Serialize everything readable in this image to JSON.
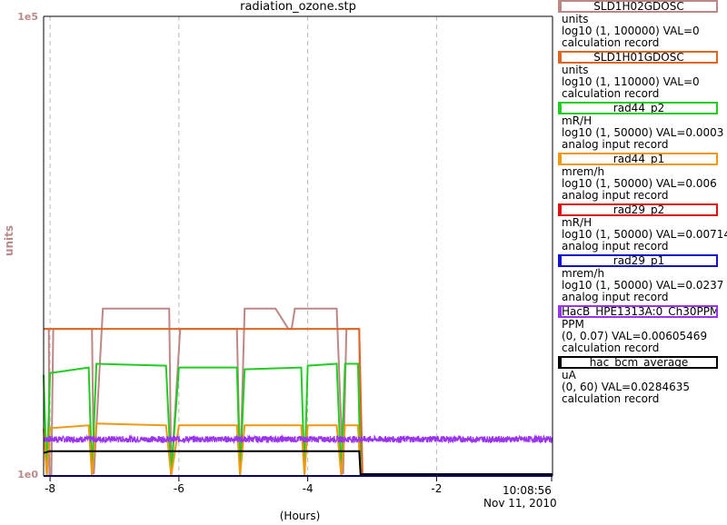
{
  "title": "radiation_ozone.stp",
  "chart_data": {
    "type": "line",
    "title": "radiation_ozone.stp",
    "ylabel": "units",
    "y_scale": "log",
    "yticks": [
      "1e5",
      "1e0"
    ],
    "xlabel": "(Hours)",
    "xlim": [
      -8.1,
      -0.2
    ],
    "xticks": [
      -8,
      -6,
      -4,
      -2
    ],
    "xtick_labels": [
      "-8",
      "-6",
      "-4",
      "-2"
    ],
    "end_time": "10:08:56",
    "end_date": "Nov 11, 2010",
    "grid": true,
    "legend_position": "right",
    "series": [
      {
        "name": "SLD1H02GDOSC",
        "color": "#bb8888",
        "units": "units",
        "range": "log10 (1, 100000) VAL=0",
        "record": "calculation record",
        "x": [
          -8.1,
          -8.02,
          -8.01,
          -7.98,
          -7.95,
          -7.35,
          -7.32,
          -7.18,
          -6.15,
          -6.12,
          -5.98,
          -5.7,
          -5.1,
          -5.05,
          -4.98,
          -4.5,
          -4.3,
          -4.25,
          -4.2,
          -3.95,
          -3.55,
          -3.45,
          -3.4,
          -3.2,
          -3.18,
          -3.15,
          -3.12,
          -0.2
        ],
        "y": [
          1.6,
          1.6,
          0.02,
          0.02,
          1.6,
          1.6,
          0.02,
          1.82,
          1.82,
          0.02,
          1.6,
          1.6,
          1.6,
          0.02,
          1.82,
          1.82,
          1.6,
          1.6,
          1.82,
          1.82,
          1.82,
          0.02,
          1.6,
          1.6,
          0.02,
          0.02,
          0.02,
          0.02
        ]
      },
      {
        "name": "SLD1H01GDOSC",
        "color": "#dd6622",
        "units": "units",
        "range": "log10 (1, 110000) VAL=0",
        "record": "calculation record",
        "x": [
          -8.1,
          -3.2,
          -3.15,
          -0.2
        ],
        "y": [
          1.6,
          1.6,
          0.02,
          0.02
        ]
      },
      {
        "name": "rad44_p2",
        "color": "#22cc22",
        "units": "mR/H",
        "range": "log10 (1, 50000) VAL=0.0003",
        "record": "analog input record",
        "x": [
          -8.1,
          -8.05,
          -8.0,
          -7.4,
          -7.35,
          -7.28,
          -6.2,
          -6.12,
          -6.0,
          -5.1,
          -5.05,
          -4.98,
          -4.1,
          -4.05,
          -4.0,
          -3.55,
          -3.48,
          -3.42,
          -3.22,
          -3.18,
          -0.2
        ],
        "y": [
          1.1,
          0.02,
          1.12,
          1.18,
          0.02,
          1.22,
          1.2,
          0.02,
          1.18,
          1.18,
          0.02,
          1.16,
          1.18,
          0.02,
          1.2,
          1.22,
          0.02,
          1.22,
          1.22,
          0.0,
          0.0
        ]
      },
      {
        "name": "rad44_p1",
        "color": "#ee9911",
        "units": "mrem/h",
        "range": "log10 (1, 50000) VAL=0.006",
        "record": "analog input record",
        "x": [
          -8.1,
          -8.05,
          -8.0,
          -7.4,
          -7.35,
          -7.28,
          -6.2,
          -6.12,
          -6.0,
          -5.1,
          -5.05,
          -4.98,
          -4.1,
          -4.05,
          -4.0,
          -3.55,
          -3.48,
          -3.42,
          -3.22,
          -3.18,
          -0.2
        ],
        "y": [
          0.52,
          0.0,
          0.52,
          0.55,
          0.0,
          0.57,
          0.55,
          0.0,
          0.55,
          0.55,
          0.0,
          0.55,
          0.55,
          0.0,
          0.55,
          0.55,
          0.0,
          0.55,
          0.55,
          0.0,
          0.0
        ]
      },
      {
        "name": "rad29_p2",
        "color": "#dd1111",
        "units": "mR/H",
        "range": "log10 (1, 50000) VAL=0.00714",
        "record": "analog input record",
        "x": [
          -8.1,
          -0.2
        ],
        "y": [
          0.0,
          0.0
        ]
      },
      {
        "name": "rad29_p1",
        "color": "#1111cc",
        "units": "mrem/h",
        "range": "log10 (1, 50000) VAL=0.0237",
        "record": "analog input record",
        "x": [
          -8.1,
          -0.2
        ],
        "y": [
          0.0,
          0.0
        ]
      },
      {
        "name": "HacB_HPE1313A:0_Ch30PPM",
        "color": "#9933ee",
        "units": "PPM",
        "range": "(0, 0.07) VAL=0.00605469",
        "record": "calculation record",
        "x": [
          -8.1,
          -0.2
        ],
        "y": [
          0.4,
          0.4
        ],
        "noisy": true
      },
      {
        "name": "hac_bcm_average",
        "color": "#000000",
        "units": "uA",
        "range": "(0, 60) VAL=0.0284635",
        "record": "calculation record",
        "x": [
          -8.1,
          -8.0,
          -3.2,
          -3.18,
          -0.2
        ],
        "y": [
          0.25,
          0.27,
          0.27,
          0.02,
          0.02
        ]
      }
    ]
  }
}
